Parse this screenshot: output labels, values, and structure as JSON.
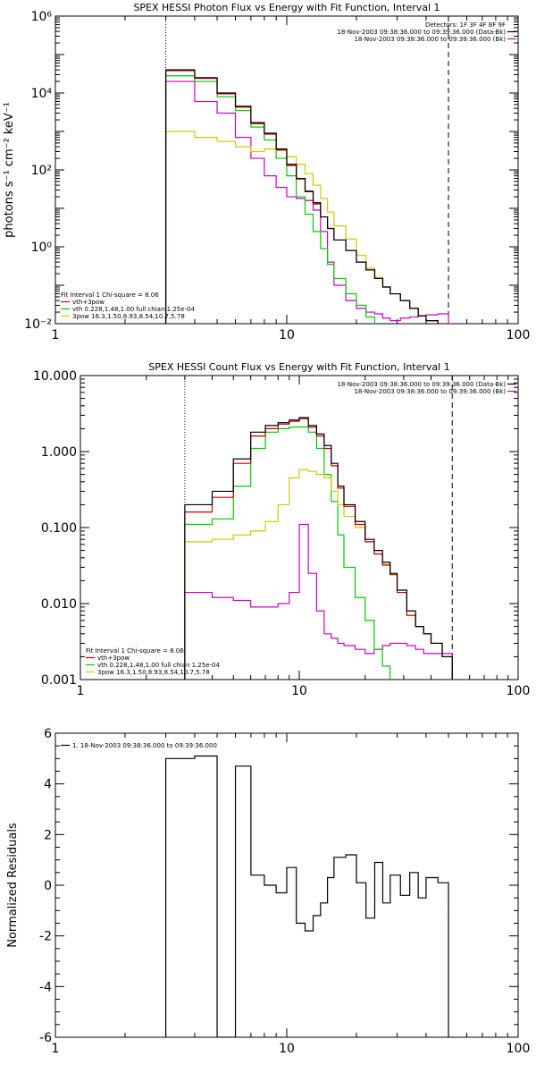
{
  "chart_data": [
    {
      "type": "line",
      "title": "SPEX HESSI Photon Flux vs Energy with Fit Function, Interval 1",
      "ylabel": "photons s⁻¹ cm⁻² keV⁻¹",
      "xlabel": "",
      "xscale": "log",
      "yscale": "log",
      "xlim": [
        1,
        100
      ],
      "ylim": [
        0.01,
        1000000
      ],
      "x_tick_labels": [
        "1",
        "10",
        "100"
      ],
      "y_tick_labels": [
        {
          "value": 0.01,
          "label": "10⁻²"
        },
        {
          "value": 1,
          "label": "10⁰"
        },
        {
          "value": 100,
          "label": "10²"
        },
        {
          "value": 10000,
          "label": "10⁴"
        },
        {
          "value": 1000000,
          "label": "10⁶"
        }
      ],
      "energy_edges": [
        3,
        4,
        5,
        6,
        7,
        8,
        9,
        10,
        11,
        12,
        13,
        14,
        15,
        16,
        18,
        20,
        22,
        24,
        26,
        28,
        31,
        34,
        37,
        40,
        45,
        50
      ],
      "vlines": [
        {
          "x": 3,
          "style": "dotted"
        },
        {
          "x": 50,
          "style": "dashed"
        }
      ],
      "legend_right": {
        "header": "Detectors: 1F 3F 4F 8F 9F",
        "entries": [
          {
            "label": "18-Nov-2003 09:38:36.000 to 09:39:36.000 (Data-Bk)",
            "color": "#000000"
          },
          {
            "label": "18-Nov-2003 09:38:36.000 to 09:39:36.000 (Bk)",
            "color": "#cc00cc"
          }
        ]
      },
      "legend_left": {
        "header": "Fit Interval 1    Chi-square = 8.06",
        "entries": [
          {
            "label": "vth+3pow",
            "color": "#cc0000"
          },
          {
            "label": "vth 0.228,1.48,1.00  full chian 1.25e-04",
            "color": "#00cc00"
          },
          {
            "label": "3pow 16.3,1.50,8.93,8.54,10.7,5.78",
            "color": "#d4c800"
          }
        ]
      },
      "series": [
        {
          "role": "data",
          "color": "#000000",
          "values": [
            40000,
            25000,
            10000,
            4500,
            1700,
            900,
            350,
            140,
            60,
            28,
            14,
            6,
            3,
            1.5,
            0.8,
            0.4,
            0.25,
            0.15,
            0.09,
            0.06,
            0.04,
            0.025,
            0.016,
            0.012,
            0.009
          ]
        },
        {
          "role": "fit",
          "color": "#cc0000",
          "values": [
            38000,
            24000,
            9500,
            4300,
            1600,
            850,
            330,
            130,
            58,
            27,
            13,
            6,
            3,
            1.5,
            0.8,
            0.4,
            0.25,
            0.15,
            0.09,
            0.06,
            0.04,
            0.025,
            0.016,
            0.012,
            0.009
          ]
        },
        {
          "role": "thermal",
          "color": "#00cc00",
          "values": [
            28000,
            20000,
            8000,
            3500,
            1300,
            600,
            200,
            70,
            20,
            7,
            2.5,
            0.9,
            0.35,
            0.15,
            0.06,
            0.03,
            0.015,
            0.005
          ]
        },
        {
          "role": "nonthermal",
          "color": "#d4c800",
          "values": [
            1000,
            700,
            550,
            400,
            300,
            350,
            320,
            220,
            140,
            80,
            40,
            18,
            8,
            3.5,
            1.6,
            0.6,
            0.28,
            0.16,
            0.09,
            0.06,
            0.04,
            0.025,
            0.016,
            0.012,
            0.009
          ]
        },
        {
          "role": "background",
          "color": "#cc00cc",
          "values": [
            20000,
            6000,
            3000,
            700,
            200,
            70,
            35,
            20,
            18,
            16,
            9,
            2.5,
            0.4,
            0.1,
            0.04,
            0.025,
            0.02,
            0.018,
            0.014,
            0.012,
            0.014,
            0.015,
            0.016,
            0.017,
            0.018
          ]
        }
      ]
    },
    {
      "type": "line",
      "title": "SPEX HESSI Count Flux vs Energy with Fit Function, Interval 1",
      "xlabel": "",
      "ylabel": "",
      "xscale": "log",
      "yscale": "log",
      "xlim": [
        1,
        100
      ],
      "ylim": [
        0.001,
        10
      ],
      "x_tick_labels": [
        "1",
        "10",
        "100"
      ],
      "y_tick_labels": [
        {
          "value": 0.001,
          "label": "0.001"
        },
        {
          "value": 0.01,
          "label": "0.010"
        },
        {
          "value": 0.1,
          "label": "0.100"
        },
        {
          "value": 1,
          "label": "1.000"
        },
        {
          "value": 10,
          "label": "10.000"
        }
      ],
      "energy_edges": [
        3,
        4,
        5,
        6,
        7,
        8,
        9,
        10,
        11,
        12,
        13,
        14,
        15,
        16,
        18,
        20,
        22,
        24,
        26,
        28,
        31,
        34,
        37,
        40,
        45,
        50
      ],
      "vlines": [
        {
          "x": 3,
          "style": "dotted"
        },
        {
          "x": 50,
          "style": "dashed"
        }
      ],
      "legend_right": {
        "header": "",
        "entries": [
          {
            "label": "18-Nov-2003 09:38:36.000 to 09:39:36.000 (Data-Bk)",
            "color": "#000000"
          },
          {
            "label": "18-Nov-2003 09:38:36.000 to 09:39:36.000 (Bk)",
            "color": "#cc00cc"
          }
        ]
      },
      "legend_left": {
        "header": "Fit Interval 1    Chi-square = 8.06",
        "entries": [
          {
            "label": "vth+3pow",
            "color": "#cc0000"
          },
          {
            "label": "vth 0.228,1.48,1.00  full chian 1.25e-04",
            "color": "#00cc00"
          },
          {
            "label": "3pow 16.3,1.50,8.93,8.54,10.7,5.78",
            "color": "#d4c800"
          }
        ]
      },
      "series": [
        {
          "role": "data",
          "color": "#000000",
          "values": [
            0.2,
            0.3,
            0.8,
            1.8,
            2.2,
            2.4,
            2.6,
            2.8,
            2.2,
            1.7,
            1.2,
            0.7,
            0.35,
            0.2,
            0.12,
            0.07,
            0.05,
            0.035,
            0.025,
            0.015,
            0.008,
            0.005,
            0.004,
            0.003,
            0.002
          ]
        },
        {
          "role": "fit",
          "color": "#cc0000",
          "values": [
            0.16,
            0.25,
            0.7,
            1.6,
            2.0,
            2.3,
            2.5,
            2.7,
            2.1,
            1.6,
            1.1,
            0.65,
            0.33,
            0.19,
            0.11,
            0.065,
            0.045,
            0.032,
            0.024,
            0.014,
            0.007,
            0.005,
            0.004,
            0.003,
            0.002
          ]
        },
        {
          "role": "thermal",
          "color": "#00cc00",
          "values": [
            0.11,
            0.13,
            0.35,
            1.1,
            1.8,
            2.0,
            2.1,
            2.1,
            1.8,
            1.1,
            0.5,
            0.22,
            0.08,
            0.03,
            0.012,
            0.006,
            0.0025,
            0.0015,
            0.0008
          ]
        },
        {
          "role": "nonthermal",
          "color": "#d4c800",
          "values": [
            0.065,
            0.07,
            0.08,
            0.09,
            0.12,
            0.2,
            0.45,
            0.58,
            0.55,
            0.5,
            0.45,
            0.3,
            0.2,
            0.14,
            0.1,
            0.065,
            0.045,
            0.033,
            0.024,
            0.014,
            0.007,
            0.005,
            0.004,
            0.003,
            0.002
          ]
        },
        {
          "role": "background",
          "color": "#cc00cc",
          "values": [
            0.014,
            0.012,
            0.011,
            0.009,
            0.009,
            0.01,
            0.014,
            0.11,
            0.025,
            0.008,
            0.004,
            0.0035,
            0.003,
            0.0028,
            0.0025,
            0.0022,
            0.0025,
            0.0028,
            0.003,
            0.003,
            0.0028,
            0.0025,
            0.0022,
            0.0022,
            0.0022
          ]
        }
      ]
    },
    {
      "type": "line",
      "title": "",
      "xlabel": "",
      "ylabel": "Normalized Residuals",
      "xscale": "log",
      "yscale": "linear",
      "xlim": [
        1,
        100
      ],
      "ylim": [
        -6,
        6
      ],
      "x_tick_labels": [
        "1",
        "10",
        "100"
      ],
      "y_tick_labels": [
        {
          "value": -6,
          "label": "-6"
        },
        {
          "value": -4,
          "label": "-4"
        },
        {
          "value": -2,
          "label": "-2"
        },
        {
          "value": 0,
          "label": "0"
        },
        {
          "value": 2,
          "label": "2"
        },
        {
          "value": 4,
          "label": "4"
        },
        {
          "value": 6,
          "label": "6"
        }
      ],
      "energy_edges": [
        3,
        4,
        5,
        6,
        7,
        8,
        9,
        10,
        11,
        12,
        13,
        14,
        15,
        16,
        18,
        20,
        22,
        24,
        26,
        28,
        31,
        34,
        37,
        40,
        45,
        50
      ],
      "legend_left": {
        "header": "",
        "entries": [
          {
            "label": "1. 18-Nov-2003 09:38:36.000 to 09:39:36.000",
            "color": "#000000"
          }
        ]
      },
      "series": [
        {
          "role": "residuals",
          "color": "#000000",
          "values": [
            5.0,
            5.1,
            -6.0,
            4.7,
            0.4,
            0.0,
            -0.3,
            0.7,
            -1.5,
            -1.8,
            -1.2,
            -0.7,
            0.3,
            1.1,
            1.2,
            0.1,
            -1.3,
            0.9,
            -0.7,
            0.4,
            -0.4,
            0.5,
            -0.5,
            0.3,
            0.1
          ]
        }
      ]
    }
  ]
}
